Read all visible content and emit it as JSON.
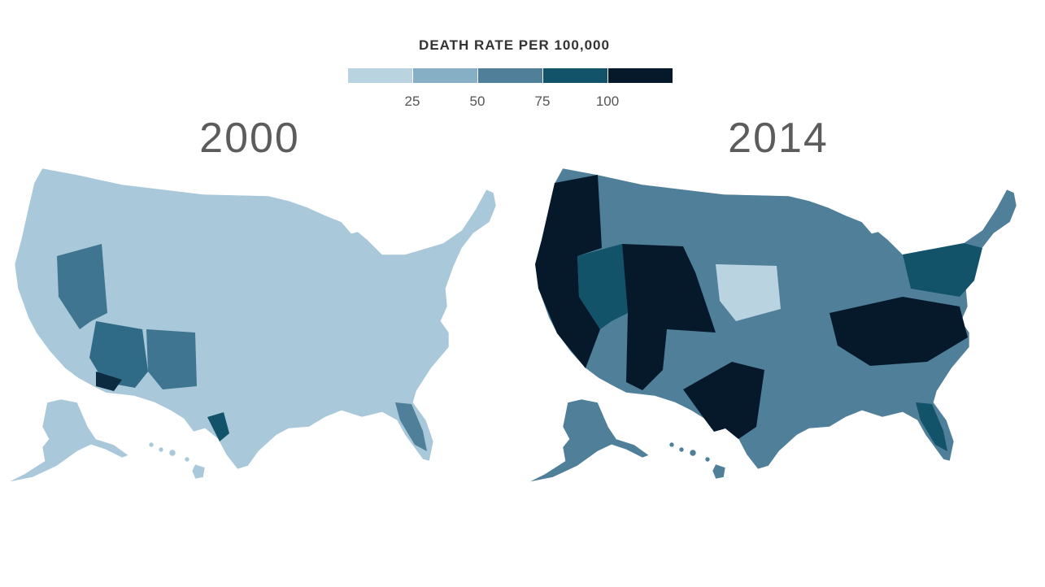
{
  "legend": {
    "title": "DEATH RATE PER 100,000",
    "colors": [
      "#b9d3e1",
      "#86aec5",
      "#4f7f99",
      "#12536a",
      "#06192b"
    ],
    "ticks": [
      "25",
      "50",
      "75",
      "100"
    ]
  },
  "maps": [
    {
      "year": "2000",
      "base_color": "#a9c8da"
    },
    {
      "year": "2014",
      "base_color": "#4f7f99"
    }
  ]
}
